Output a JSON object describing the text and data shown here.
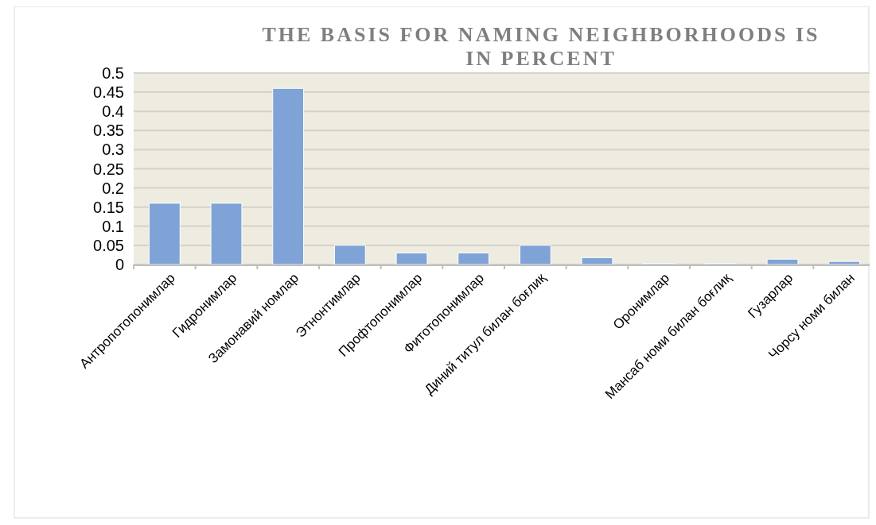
{
  "chart_data": {
    "type": "bar",
    "title": "THE BASIS FOR NAMING NEIGHBORHOODS IS IN PERCENT",
    "categories": [
      "Антропотопонимлар",
      "Гидронимлар",
      "Замонавий номлар",
      "Этнонтимлар",
      "Профтопонимлар",
      "Фитотопонимлар",
      "Диний титул билан боғлиқ",
      null,
      "Оронимлар",
      "Мансаб номи билан боғлиқ",
      "Гузарлар",
      "Чорсу номи билан"
    ],
    "values": [
      0.16,
      0.16,
      0.46,
      0.05,
      0.03,
      0.03,
      0.05,
      0.018,
      0.003,
      0.003,
      0.014,
      0.008
    ],
    "color": "#7fa3d6",
    "ylim": [
      0,
      0.5
    ],
    "yticks": [
      0,
      0.05,
      0.1,
      0.15,
      0.2,
      0.25,
      0.3,
      0.35,
      0.4,
      0.45,
      0.5
    ],
    "grid": "y"
  }
}
